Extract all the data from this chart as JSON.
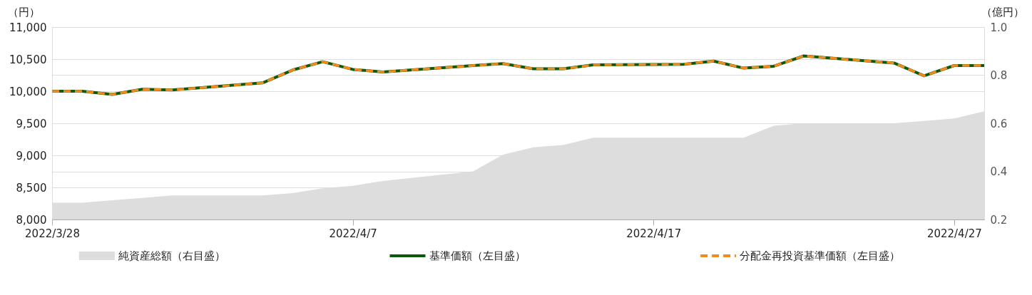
{
  "chart_data": {
    "type": "line",
    "ylabel": "（円）",
    "y2label": "（億円）",
    "x": [
      "2022-03-28",
      "2022-03-29",
      "2022-03-30",
      "2022-03-31",
      "2022-04-01",
      "2022-04-04",
      "2022-04-05",
      "2022-04-06",
      "2022-04-07",
      "2022-04-08",
      "2022-04-11",
      "2022-04-12",
      "2022-04-13",
      "2022-04-14",
      "2022-04-15",
      "2022-04-18",
      "2022-04-19",
      "2022-04-20",
      "2022-04-21",
      "2022-04-22",
      "2022-04-25",
      "2022-04-26",
      "2022-04-27",
      "2022-04-28"
    ],
    "series": [
      {
        "name": "純資産総額（右目盛）",
        "type": "area",
        "axis": "y2",
        "color": "#dcdddc",
        "values": [
          0.27,
          0.27,
          0.28,
          0.29,
          0.3,
          0.3,
          0.31,
          0.33,
          0.34,
          0.36,
          0.4,
          0.47,
          0.5,
          0.51,
          0.54,
          0.54,
          0.54,
          0.54,
          0.59,
          0.6,
          0.6,
          0.61,
          0.62,
          0.65
        ]
      },
      {
        "name": "基準価額（左目盛）",
        "type": "line",
        "color": "#0b5a0b",
        "line_style": "solid",
        "values": [
          10000,
          10000,
          9950,
          10030,
          10020,
          10130,
          10330,
          10460,
          10340,
          10300,
          10400,
          10430,
          10350,
          10350,
          10410,
          10420,
          10470,
          10360,
          10390,
          10550,
          10440,
          10240,
          10400,
          10400
        ]
      },
      {
        "name": "分配金再投資基準価額（左目盛）",
        "type": "line",
        "color": "#f08c1e",
        "line_style": "dashed",
        "values": [
          10000,
          10000,
          9950,
          10030,
          10020,
          10130,
          10330,
          10460,
          10340,
          10300,
          10400,
          10430,
          10350,
          10350,
          10410,
          10420,
          10470,
          10360,
          10390,
          10550,
          10440,
          10240,
          10400,
          10400
        ]
      }
    ],
    "xlim": [
      "2022-03-28",
      "2022-04-28"
    ],
    "xticks": [
      {
        "value": "2022-03-28",
        "label": "2022/3/28"
      },
      {
        "value": "2022-04-07",
        "label": "2022/4/7"
      },
      {
        "value": "2022-04-17",
        "label": "2022/4/17"
      },
      {
        "value": "2022-04-27",
        "label": "2022/4/27"
      }
    ],
    "ylim": [
      8000,
      11000
    ],
    "yticks": [
      {
        "value": 8000,
        "label": "8,000"
      },
      {
        "value": 8500,
        "label": "8,500"
      },
      {
        "value": 9000,
        "label": "9,000"
      },
      {
        "value": 9500,
        "label": "9,500"
      },
      {
        "value": 10000,
        "label": "10,000"
      },
      {
        "value": 10500,
        "label": "10,500"
      },
      {
        "value": 11000,
        "label": "11,000"
      }
    ],
    "y2lim": [
      0.2,
      1.0
    ],
    "y2ticks": [
      {
        "value": 0.2,
        "label": "0.2"
      },
      {
        "value": 0.4,
        "label": "0.4"
      },
      {
        "value": 0.6,
        "label": "0.6"
      },
      {
        "value": 0.8,
        "label": "0.8"
      },
      {
        "value": 1.0,
        "label": "1.0"
      }
    ],
    "grid": "y",
    "legend": "bottom",
    "marker": "none"
  }
}
